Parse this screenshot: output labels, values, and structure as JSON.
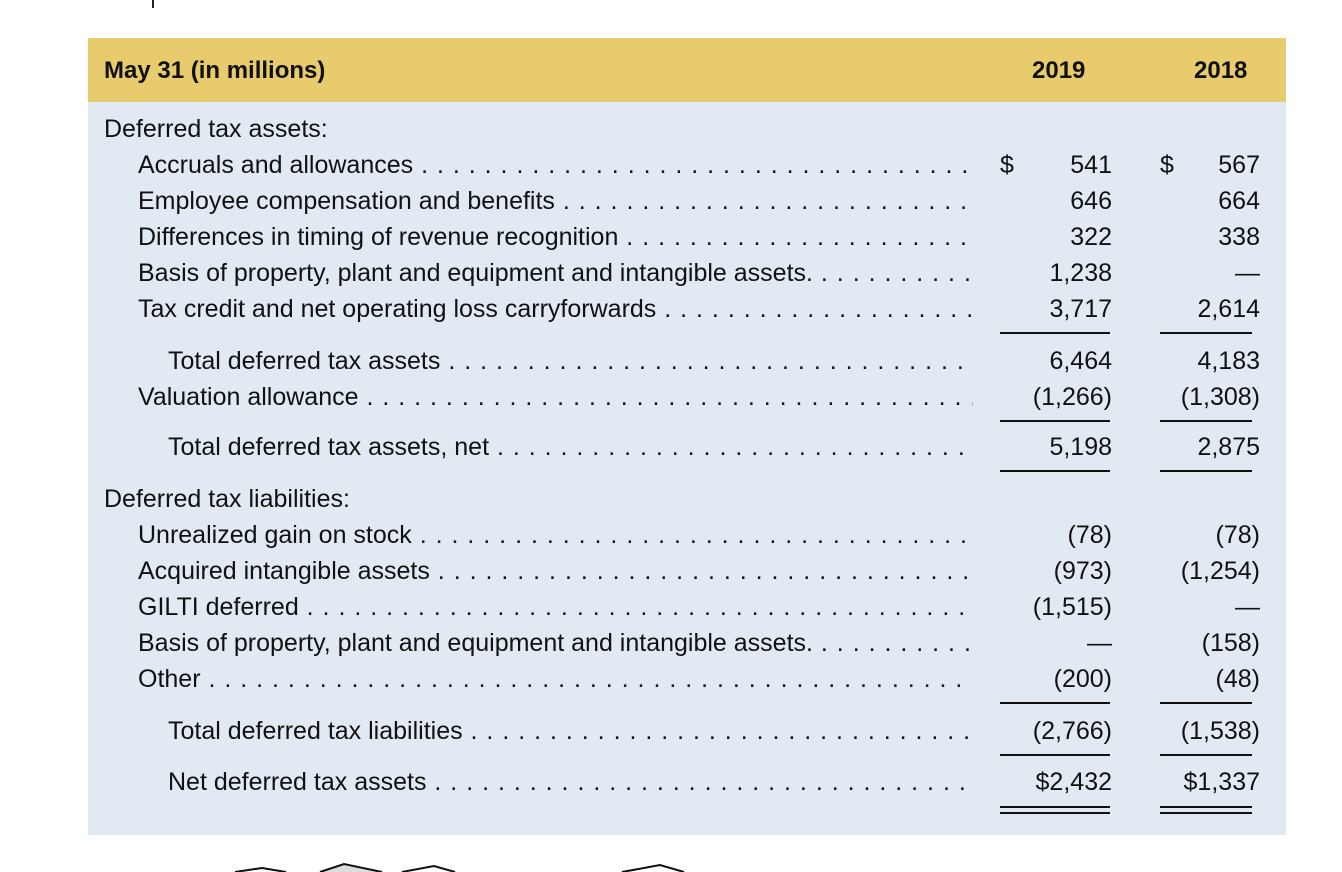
{
  "table": {
    "header": {
      "label": "May 31 (in millions)",
      "col_2019": "2019",
      "col_2018": "2018"
    },
    "assets_title": "Deferred tax assets:",
    "assets": [
      {
        "label": "Accruals and allowances",
        "dollar_2019": "$",
        "v2019": "541",
        "dollar_2018": "$",
        "v2018": "567"
      },
      {
        "label": "Employee compensation and benefits",
        "v2019": "646",
        "v2018": "664"
      },
      {
        "label": "Differences in timing of revenue recognition",
        "v2019": "322",
        "v2018": "338"
      },
      {
        "label": "Basis of property, plant and equipment and intangible assets.",
        "v2019": "1,238",
        "v2018": "—"
      },
      {
        "label": "Tax credit and net operating loss carryforwards",
        "v2019": "3,717",
        "v2018": "2,614"
      }
    ],
    "total_assets": {
      "label": "Total deferred tax assets",
      "v2019": "6,464",
      "v2018": "4,183"
    },
    "valuation": {
      "label": "Valuation allowance",
      "v2019": "(1,266)",
      "v2018": "(1,308)"
    },
    "total_assets_net": {
      "label": "Total deferred tax assets, net",
      "v2019": "5,198",
      "v2018": "2,875"
    },
    "liabilities_title": "Deferred tax liabilities:",
    "liabilities": [
      {
        "label": "Unrealized gain on stock",
        "v2019": "(78)",
        "v2018": "(78)"
      },
      {
        "label": "Acquired intangible assets",
        "v2019": "(973)",
        "v2018": "(1,254)"
      },
      {
        "label": "GILTI deferred",
        "v2019": "(1,515)",
        "v2018": "—"
      },
      {
        "label": "Basis of property, plant and equipment and intangible assets.",
        "v2019": "—",
        "v2018": "(158)"
      },
      {
        "label": "Other",
        "v2019": "(200)",
        "v2018": "(48)"
      }
    ],
    "total_liabilities": {
      "label": "Total deferred tax liabilities",
      "v2019": "(2,766)",
      "v2018": "(1,538)"
    },
    "net": {
      "label": "Net deferred tax assets",
      "v2019": "$2,432",
      "v2018": "$1,337"
    }
  }
}
